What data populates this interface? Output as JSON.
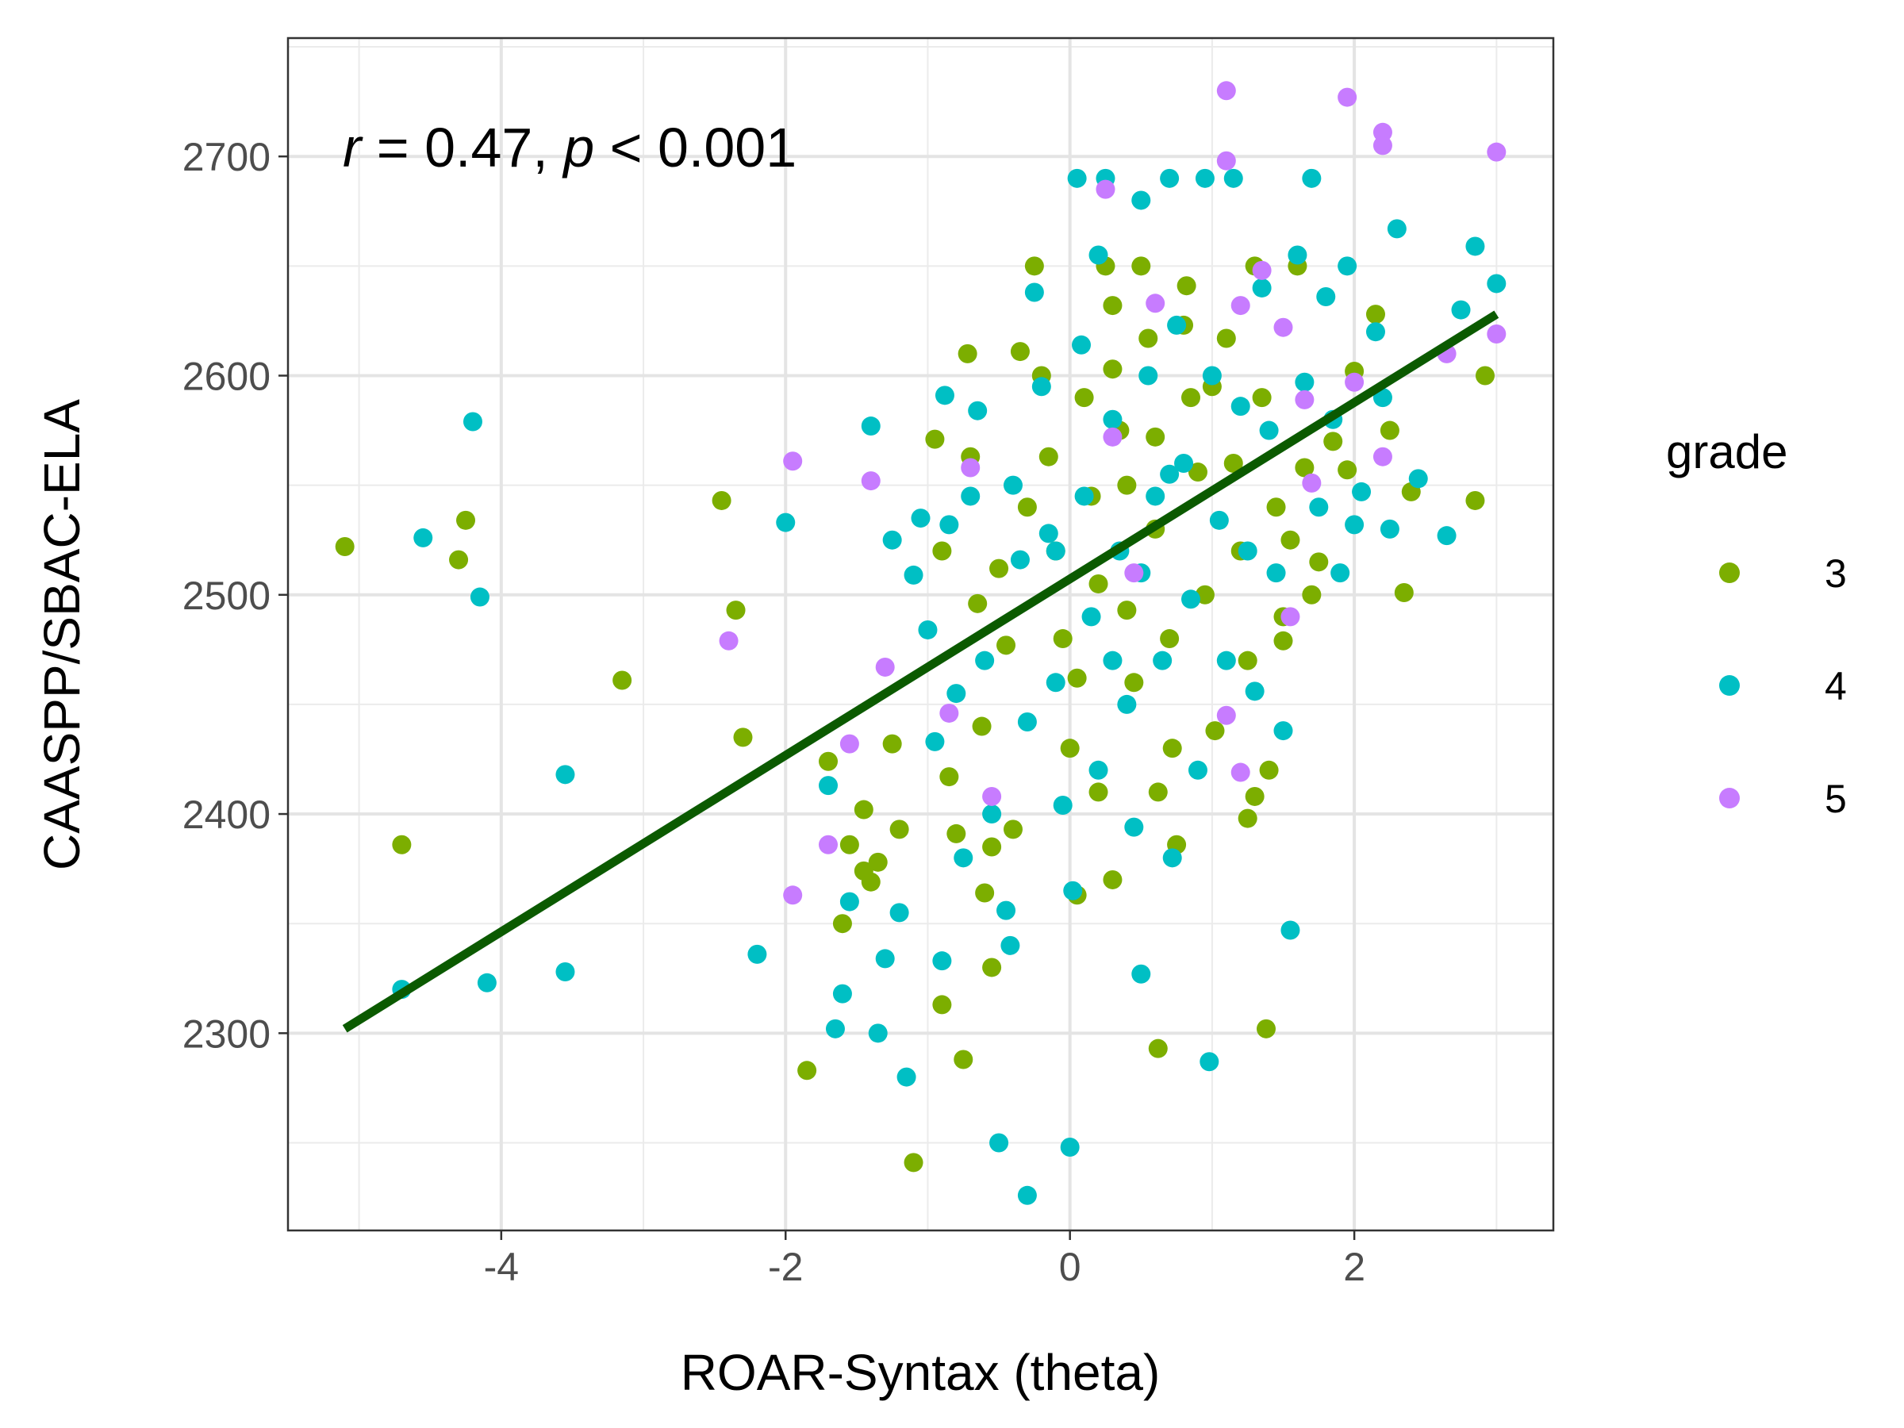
{
  "chart_data": {
    "type": "scatter",
    "title": "",
    "xlabel": "ROAR-Syntax (theta)",
    "ylabel": "CAASPP/SBAC-ELA",
    "xlim": [
      -5.5,
      3.4
    ],
    "ylim": [
      2210,
      2754
    ],
    "x_ticks": [
      -4,
      -2,
      0,
      2
    ],
    "x_tick_labels": [
      "-4",
      "-2",
      "0",
      "2"
    ],
    "y_ticks": [
      2300,
      2400,
      2500,
      2600,
      2700
    ],
    "y_tick_labels": [
      "2300",
      "2400",
      "2500",
      "2600",
      "2700"
    ],
    "grid": true,
    "legend": {
      "title": "grade",
      "position": "right",
      "entries": [
        {
          "label": "3",
          "color": "#7CAE00"
        },
        {
          "label": "4",
          "color": "#00BFC4"
        },
        {
          "label": "5",
          "color": "#C77CFF"
        }
      ]
    },
    "annotation": {
      "r_symbol": "r",
      "r_text": " = 0.47, ",
      "p_symbol": "p",
      "p_text": " < 0.001"
    },
    "regression_line": {
      "color": "#0B5A00",
      "x": [
        -5.1,
        3.0
      ],
      "y": [
        2302,
        2628
      ]
    },
    "series": [
      {
        "name": "3",
        "color": "#7CAE00",
        "points": [
          [
            -5.1,
            2522
          ],
          [
            -4.7,
            2386
          ],
          [
            -4.25,
            2534
          ],
          [
            -4.3,
            2516
          ],
          [
            -3.15,
            2461
          ],
          [
            -2.45,
            2543
          ],
          [
            -2.35,
            2493
          ],
          [
            -2.3,
            2435
          ],
          [
            -1.85,
            2283
          ],
          [
            -1.7,
            2424
          ],
          [
            -1.6,
            2350
          ],
          [
            -1.55,
            2386
          ],
          [
            -1.45,
            2402
          ],
          [
            -1.4,
            2369
          ],
          [
            -1.35,
            2378
          ],
          [
            -1.25,
            2432
          ],
          [
            -1.2,
            2393
          ],
          [
            -1.1,
            2241
          ],
          [
            -0.95,
            2571
          ],
          [
            -0.9,
            2520
          ],
          [
            -0.85,
            2417
          ],
          [
            -0.8,
            2391
          ],
          [
            -0.75,
            2288
          ],
          [
            -0.72,
            2610
          ],
          [
            -0.7,
            2563
          ],
          [
            -0.65,
            2496
          ],
          [
            -0.62,
            2440
          ],
          [
            -0.6,
            2364
          ],
          [
            -0.55,
            2330
          ],
          [
            -0.55,
            2385
          ],
          [
            -0.5,
            2512
          ],
          [
            -0.45,
            2477
          ],
          [
            -0.4,
            2393
          ],
          [
            -0.35,
            2611
          ],
          [
            -0.3,
            2540
          ],
          [
            -0.25,
            2650
          ],
          [
            -0.2,
            2600
          ],
          [
            -0.15,
            2563
          ],
          [
            -0.1,
            2520
          ],
          [
            -0.05,
            2480
          ],
          [
            0.0,
            2430
          ],
          [
            0.05,
            2462
          ],
          [
            0.05,
            2363
          ],
          [
            0.1,
            2590
          ],
          [
            0.15,
            2545
          ],
          [
            0.2,
            2505
          ],
          [
            0.2,
            2410
          ],
          [
            0.25,
            2650
          ],
          [
            0.3,
            2603
          ],
          [
            0.3,
            2632
          ],
          [
            0.35,
            2575
          ],
          [
            0.4,
            2550
          ],
          [
            0.4,
            2493
          ],
          [
            0.45,
            2460
          ],
          [
            0.5,
            2650
          ],
          [
            0.55,
            2617
          ],
          [
            0.6,
            2572
          ],
          [
            0.6,
            2530
          ],
          [
            0.62,
            2410
          ],
          [
            0.62,
            2293
          ],
          [
            0.7,
            2480
          ],
          [
            0.72,
            2430
          ],
          [
            0.75,
            2386
          ],
          [
            0.8,
            2623
          ],
          [
            0.82,
            2641
          ],
          [
            0.85,
            2590
          ],
          [
            0.9,
            2556
          ],
          [
            0.95,
            2500
          ],
          [
            1.0,
            2595
          ],
          [
            1.02,
            2438
          ],
          [
            1.1,
            2617
          ],
          [
            1.15,
            2560
          ],
          [
            1.2,
            2520
          ],
          [
            1.25,
            2470
          ],
          [
            1.3,
            2650
          ],
          [
            1.35,
            2590
          ],
          [
            1.38,
            2302
          ],
          [
            1.4,
            2420
          ],
          [
            1.45,
            2540
          ],
          [
            1.5,
            2490
          ],
          [
            1.55,
            2525
          ],
          [
            1.6,
            2650
          ],
          [
            1.65,
            2558
          ],
          [
            1.7,
            2500
          ],
          [
            1.75,
            2515
          ],
          [
            1.85,
            2570
          ],
          [
            1.95,
            2557
          ],
          [
            2.0,
            2602
          ],
          [
            2.15,
            2628
          ],
          [
            2.25,
            2575
          ],
          [
            2.35,
            2501
          ],
          [
            2.4,
            2547
          ],
          [
            2.85,
            2543
          ],
          [
            2.92,
            2600
          ],
          [
            1.25,
            2398
          ],
          [
            1.3,
            2408
          ],
          [
            1.5,
            2479
          ],
          [
            -1.45,
            2374
          ],
          [
            -0.9,
            2313
          ],
          [
            0.3,
            2370
          ]
        ]
      },
      {
        "name": "4",
        "color": "#00BFC4",
        "points": [
          [
            -4.7,
            2320
          ],
          [
            -4.55,
            2526
          ],
          [
            -4.2,
            2579
          ],
          [
            -4.15,
            2499
          ],
          [
            -4.1,
            2323
          ],
          [
            -3.55,
            2418
          ],
          [
            -3.55,
            2328
          ],
          [
            -2.2,
            2336
          ],
          [
            -2.0,
            2533
          ],
          [
            -1.7,
            2413
          ],
          [
            -1.65,
            2302
          ],
          [
            -1.6,
            2318
          ],
          [
            -1.55,
            2360
          ],
          [
            -1.4,
            2577
          ],
          [
            -1.35,
            2300
          ],
          [
            -1.3,
            2334
          ],
          [
            -1.25,
            2525
          ],
          [
            -1.2,
            2355
          ],
          [
            -1.15,
            2280
          ],
          [
            -1.1,
            2509
          ],
          [
            -1.05,
            2535
          ],
          [
            -1.0,
            2484
          ],
          [
            -0.95,
            2433
          ],
          [
            -0.9,
            2333
          ],
          [
            -0.88,
            2591
          ],
          [
            -0.85,
            2532
          ],
          [
            -0.8,
            2455
          ],
          [
            -0.75,
            2380
          ],
          [
            -0.7,
            2545
          ],
          [
            -0.65,
            2584
          ],
          [
            -0.6,
            2470
          ],
          [
            -0.55,
            2400
          ],
          [
            -0.5,
            2250
          ],
          [
            -0.45,
            2356
          ],
          [
            -0.42,
            2340
          ],
          [
            -0.4,
            2550
          ],
          [
            -0.35,
            2516
          ],
          [
            -0.3,
            2442
          ],
          [
            -0.3,
            2226
          ],
          [
            -0.25,
            2638
          ],
          [
            -0.2,
            2595
          ],
          [
            -0.15,
            2528
          ],
          [
            -0.1,
            2460
          ],
          [
            -0.05,
            2404
          ],
          [
            0.0,
            2248
          ],
          [
            0.02,
            2365
          ],
          [
            0.05,
            2690
          ],
          [
            0.08,
            2614
          ],
          [
            0.1,
            2545
          ],
          [
            0.15,
            2490
          ],
          [
            0.2,
            2420
          ],
          [
            0.2,
            2655
          ],
          [
            0.25,
            2690
          ],
          [
            0.3,
            2580
          ],
          [
            0.35,
            2520
          ],
          [
            0.4,
            2450
          ],
          [
            0.45,
            2394
          ],
          [
            0.5,
            2680
          ],
          [
            0.5,
            2327
          ],
          [
            0.55,
            2600
          ],
          [
            0.6,
            2545
          ],
          [
            0.65,
            2470
          ],
          [
            0.7,
            2690
          ],
          [
            0.72,
            2380
          ],
          [
            0.75,
            2623
          ],
          [
            0.8,
            2560
          ],
          [
            0.85,
            2498
          ],
          [
            0.9,
            2420
          ],
          [
            0.95,
            2690
          ],
          [
            0.98,
            2287
          ],
          [
            1.0,
            2600
          ],
          [
            1.05,
            2534
          ],
          [
            1.1,
            2470
          ],
          [
            1.15,
            2690
          ],
          [
            1.2,
            2586
          ],
          [
            1.25,
            2520
          ],
          [
            1.3,
            2456
          ],
          [
            1.35,
            2640
          ],
          [
            1.4,
            2575
          ],
          [
            1.45,
            2510
          ],
          [
            1.5,
            2438
          ],
          [
            1.55,
            2347
          ],
          [
            1.6,
            2655
          ],
          [
            1.65,
            2597
          ],
          [
            1.7,
            2690
          ],
          [
            1.75,
            2540
          ],
          [
            1.8,
            2636
          ],
          [
            1.85,
            2580
          ],
          [
            1.9,
            2510
          ],
          [
            1.95,
            2650
          ],
          [
            2.0,
            2532
          ],
          [
            2.05,
            2547
          ],
          [
            2.15,
            2620
          ],
          [
            2.2,
            2590
          ],
          [
            2.25,
            2530
          ],
          [
            2.3,
            2667
          ],
          [
            2.45,
            2553
          ],
          [
            2.65,
            2527
          ],
          [
            2.75,
            2630
          ],
          [
            2.85,
            2659
          ],
          [
            3.0,
            2642
          ],
          [
            0.3,
            2470
          ],
          [
            0.5,
            2510
          ],
          [
            -0.1,
            2520
          ],
          [
            0.7,
            2555
          ]
        ]
      },
      {
        "name": "5",
        "color": "#C77CFF",
        "points": [
          [
            -1.95,
            2561
          ],
          [
            -2.4,
            2479
          ],
          [
            -1.4,
            2552
          ],
          [
            -1.3,
            2467
          ],
          [
            -1.95,
            2363
          ],
          [
            -1.7,
            2386
          ],
          [
            -1.55,
            2432
          ],
          [
            -0.85,
            2446
          ],
          [
            -0.7,
            2558
          ],
          [
            -0.55,
            2408
          ],
          [
            0.25,
            2685
          ],
          [
            0.3,
            2572
          ],
          [
            0.45,
            2510
          ],
          [
            0.6,
            2633
          ],
          [
            1.1,
            2730
          ],
          [
            1.1,
            2698
          ],
          [
            1.1,
            2445
          ],
          [
            1.2,
            2632
          ],
          [
            1.2,
            2419
          ],
          [
            1.5,
            2622
          ],
          [
            1.55,
            2490
          ],
          [
            1.65,
            2589
          ],
          [
            1.7,
            2551
          ],
          [
            1.95,
            2727
          ],
          [
            2.0,
            2597
          ],
          [
            2.2,
            2711
          ],
          [
            2.2,
            2705
          ],
          [
            2.2,
            2563
          ],
          [
            2.65,
            2610
          ],
          [
            3.0,
            2702
          ],
          [
            3.0,
            2619
          ],
          [
            1.35,
            2648
          ]
        ]
      }
    ]
  }
}
